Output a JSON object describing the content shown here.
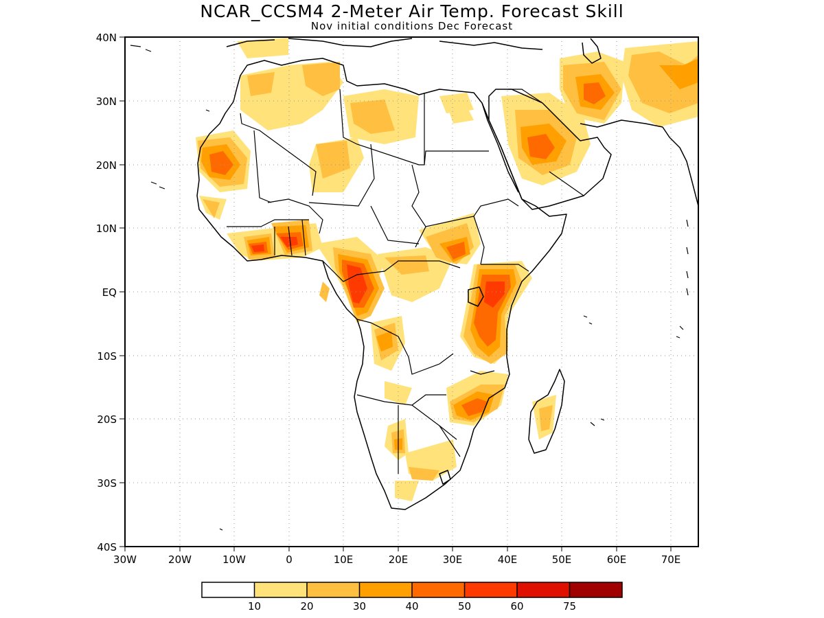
{
  "title": "NCAR_CCSM4 2-Meter Air Temp. Forecast Skill",
  "subtitle": "Nov initial conditions  Dec Forecast",
  "map": {
    "lat_labels": [
      "40N",
      "30N",
      "20N",
      "10N",
      "EQ",
      "10S",
      "20S",
      "30S",
      "40S"
    ],
    "lon_labels": [
      "30W",
      "20W",
      "10W",
      "0",
      "10E",
      "20E",
      "30E",
      "40E",
      "50E",
      "60E",
      "70E"
    ],
    "lon_range": [
      -30,
      75
    ],
    "lat_range": [
      -40,
      40
    ]
  },
  "colorbar": {
    "labels": [
      "10",
      "20",
      "30",
      "40",
      "50",
      "60",
      "75"
    ],
    "colors": [
      "#ffffff",
      "#ffe27a",
      "#ffbf40",
      "#ff9f00",
      "#ff6a00",
      "#ff3a00",
      "#e01000",
      "#a00000"
    ]
  },
  "colors": {
    "level1": "#ffe27a",
    "level2": "#ffbf40",
    "level3": "#ff9f00",
    "level4": "#ff6a00",
    "level5": "#ff3a00",
    "land_outline": "#000000",
    "grid": "#999999"
  }
}
